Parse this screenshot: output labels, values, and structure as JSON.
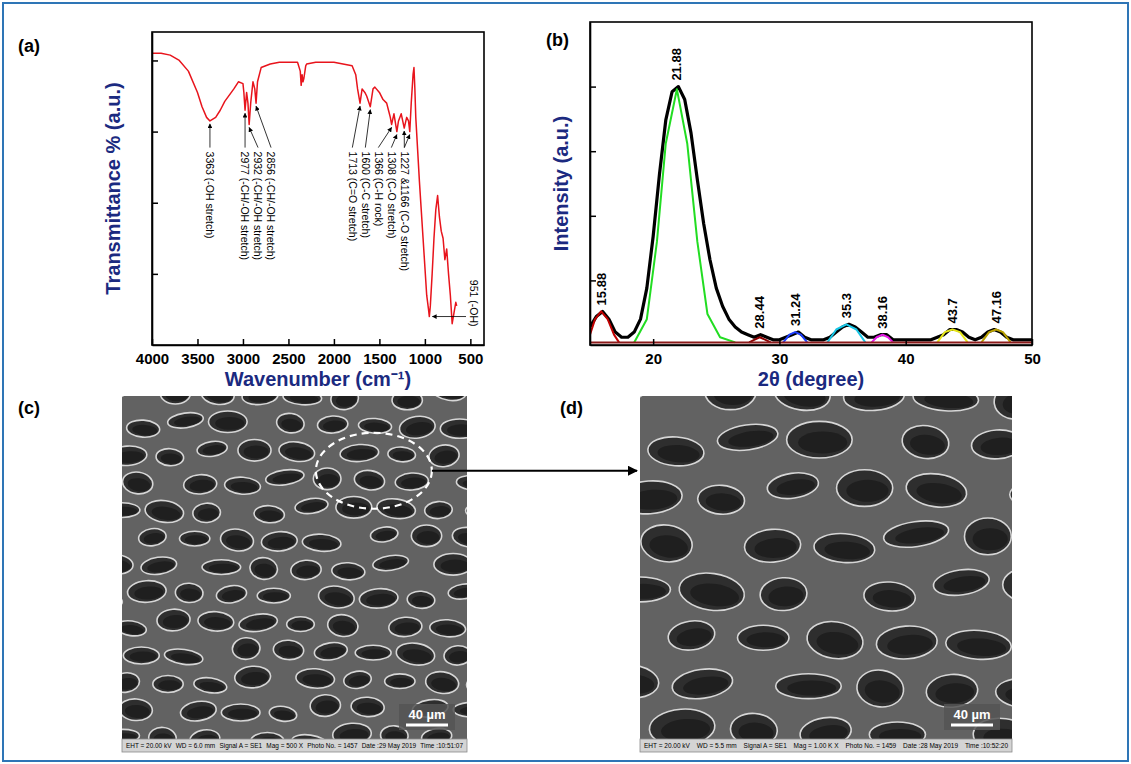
{
  "chart_data": [
    {
      "type": "line",
      "panel_label": "(a)",
      "x_label": "Wavenumber (cm⁻¹)",
      "y_label": "Transmittance % (a.u.)",
      "xlim": [
        4000,
        350
      ],
      "ylim": [
        0,
        88
      ],
      "xticks": [
        4000,
        3500,
        3000,
        2500,
        2000,
        1500,
        1000,
        500
      ],
      "yticks": [
        20,
        40,
        60,
        80
      ],
      "tick_labels": "x",
      "series": [
        {
          "color": "#e8141c",
          "x": [
            4000,
            3900,
            3800,
            3700,
            3600,
            3500,
            3450,
            3400,
            3363,
            3300,
            3250,
            3200,
            3100,
            3050,
            3000,
            2990,
            2977,
            2960,
            2945,
            2932,
            2915,
            2890,
            2870,
            2856,
            2840,
            2800,
            2700,
            2600,
            2500,
            2400,
            2370,
            2360,
            2350,
            2340,
            2330,
            2310,
            2300,
            2200,
            2100,
            2000,
            1900,
            1800,
            1760,
            1740,
            1713,
            1690,
            1660,
            1640,
            1600,
            1570,
            1550,
            1500,
            1460,
            1420,
            1400,
            1380,
            1366,
            1340,
            1308,
            1290,
            1260,
            1227,
            1200,
            1180,
            1166,
            1150,
            1130,
            1120,
            1110,
            1100,
            1080,
            1060,
            1040,
            1020,
            1000,
            980,
            960,
            951,
            940,
            920,
            900,
            880,
            860,
            840,
            820,
            800,
            780,
            760,
            740,
            720,
            700,
            680,
            660,
            650
          ],
          "values": [
            82,
            82,
            81.5,
            80,
            77,
            71,
            67,
            64,
            63,
            64,
            66,
            68.5,
            72,
            74,
            73.5,
            71,
            66,
            71,
            68,
            62,
            68,
            74,
            72,
            68,
            74,
            78,
            79,
            79.5,
            79.5,
            79.5,
            77,
            73,
            76,
            74,
            75,
            78.5,
            79,
            79.5,
            79.5,
            79.5,
            79,
            78.5,
            76,
            72,
            68,
            72,
            71,
            70,
            67,
            72,
            72.5,
            71,
            69,
            68,
            66,
            64,
            62,
            65,
            60,
            63,
            65,
            61,
            64,
            63,
            60,
            68,
            76,
            78,
            72,
            64,
            55,
            46,
            38,
            30,
            22,
            14,
            10,
            8,
            11,
            20,
            30,
            38,
            42,
            36,
            32,
            30,
            24,
            27,
            20,
            14,
            6,
            9,
            12,
            11
          ]
        }
      ],
      "annotations": [
        {
          "x": 3363,
          "y": 63,
          "text": "3363 (-OH stretch)"
        },
        {
          "x": 2977,
          "y": 66,
          "text": "2977 (-CH/-OH stretch)"
        },
        {
          "x": 2932,
          "y": 62,
          "text": "2932 (-CH/-OH stretch)"
        },
        {
          "x": 2856,
          "y": 68,
          "text": "2856 (-CH/-OH stretch)"
        },
        {
          "x": 1713,
          "y": 68,
          "text": "1713 (C=O stretch)"
        },
        {
          "x": 1600,
          "y": 67,
          "text": "1600 (C-C stretch)"
        },
        {
          "x": 1366,
          "y": 62,
          "text": "1366 (C-H rock)"
        },
        {
          "x": 1308,
          "y": 60,
          "text": "1308 (C-O stretch)"
        },
        {
          "x": [
            1227,
            1166
          ],
          "y": [
            61,
            60
          ],
          "text": "1227 &1166 (C-O stretch)"
        },
        {
          "x": 951,
          "y": 8,
          "text": "951 (-OH)"
        }
      ]
    },
    {
      "type": "line",
      "panel_label": "(b)",
      "x_label": "2θ (degree)",
      "y_label": "Intensity (a.u.)",
      "xlim": [
        15,
        50
      ],
      "ylim": [
        0,
        125
      ],
      "xticks": [
        20,
        30,
        40,
        50
      ],
      "yticks": [
        25,
        50,
        75,
        100
      ],
      "tick_labels": "x",
      "series": [
        {
          "color": "#000000",
          "x": [
            15,
            15.5,
            16,
            16.5,
            17,
            17.5,
            18,
            18.5,
            19,
            19.5,
            20,
            20.5,
            21,
            21.5,
            22,
            22.5,
            23,
            23.5,
            24,
            24.5,
            25,
            25.5,
            26,
            26.5,
            27,
            27.5,
            28,
            28.5,
            29,
            29.5,
            30,
            30.5,
            31,
            31.5,
            32,
            32.5,
            33,
            33.5,
            34,
            34.5,
            35,
            35.5,
            36,
            36.5,
            37,
            37.5,
            38,
            38.5,
            39,
            39.5,
            40,
            40.5,
            41,
            41.5,
            42,
            42.5,
            43,
            43.5,
            44,
            44.5,
            45,
            45.5,
            46,
            46.5,
            47,
            47.5,
            48,
            48.5,
            49,
            49.5,
            50
          ],
          "values": [
            7,
            11,
            13,
            10,
            5,
            3,
            3,
            5,
            10,
            22,
            42,
            66,
            87,
            98,
            100,
            95,
            82,
            64,
            47,
            33,
            22,
            15,
            10,
            7,
            5,
            4,
            3,
            4,
            3,
            2,
            2,
            3,
            4,
            5,
            3,
            2,
            2,
            2,
            3,
            5,
            7,
            8,
            7,
            5,
            3,
            3,
            4,
            4,
            2,
            2,
            2,
            2,
            2,
            2,
            2,
            3,
            4,
            6,
            6,
            5,
            3,
            2,
            3,
            5,
            6,
            5,
            3,
            2,
            2,
            2,
            2
          ]
        },
        {
          "color": "#c00000",
          "x": [
            15,
            15.4,
            15.88,
            16.4,
            16.9,
            17.3
          ],
          "values": [
            4,
            10,
            13,
            10,
            4,
            1
          ]
        },
        {
          "color": "#22dd22",
          "x": [
            18.5,
            19.5,
            20.3,
            21,
            21.88,
            22.7,
            23.5,
            24.3,
            25.3,
            26.5
          ],
          "values": [
            1,
            10,
            40,
            78,
            99,
            78,
            40,
            12,
            3,
            1
          ]
        },
        {
          "color": "#8b0000",
          "x": [
            27.6,
            28,
            28.44,
            28.9,
            29.3
          ],
          "values": [
            1,
            2,
            3,
            2,
            1
          ]
        },
        {
          "color": "#1f3fff",
          "x": [
            30.3,
            30.8,
            31.24,
            31.7,
            32.2
          ],
          "values": [
            1,
            4,
            5,
            4,
            1
          ]
        },
        {
          "color": "#19c6e6",
          "x": [
            33.8,
            34.5,
            35.3,
            36.1,
            36.8
          ],
          "values": [
            1,
            6,
            8,
            6,
            1
          ]
        },
        {
          "color": "#e619e6",
          "x": [
            37.3,
            37.7,
            38.16,
            38.6,
            39
          ],
          "values": [
            1,
            3,
            4,
            3,
            1
          ]
        },
        {
          "color": "#e6e619",
          "x": [
            42.5,
            43.1,
            43.7,
            44.3,
            44.9
          ],
          "values": [
            1,
            5,
            6,
            5,
            1
          ]
        },
        {
          "color": "#b8a000",
          "x": [
            46,
            46.6,
            47.16,
            47.7,
            48.3
          ],
          "values": [
            1,
            5,
            6,
            5,
            1
          ]
        },
        {
          "color": "#8b1a1a",
          "x": [
            15,
            50
          ],
          "values": [
            1,
            1
          ]
        }
      ],
      "peak_labels": [
        {
          "x": 15.88,
          "y": 13
        },
        {
          "x": 21.88,
          "y": 100
        },
        {
          "x": 28.44,
          "y": 4
        },
        {
          "x": 31.24,
          "y": 5
        },
        {
          "x": 35.3,
          "y": 8
        },
        {
          "x": 38.16,
          "y": 4
        },
        {
          "x": 43.7,
          "y": 6
        },
        {
          "x": 47.16,
          "y": 6
        }
      ]
    },
    {
      "type": "image",
      "panel_label": "(c)",
      "scale_bar": "40 µm",
      "info_bar": [
        "EHT = 20.00 kV",
        "WD = 6.0 mm",
        "Signal A = SE1",
        "Mag = 500 X",
        "Photo No. = 1457",
        "Date :29 May 2019",
        "Time :10:51:07"
      ]
    },
    {
      "type": "image",
      "panel_label": "(d)",
      "scale_bar": "40 µm",
      "info_bar": [
        "EHT = 20.00 kV",
        "WD = 5.5 mm",
        "Signal A = SE1",
        "Mag = 1.00 K X",
        "Photo No. = 1459",
        "Date :28 May 2019",
        "Time :10:52:20"
      ]
    }
  ]
}
